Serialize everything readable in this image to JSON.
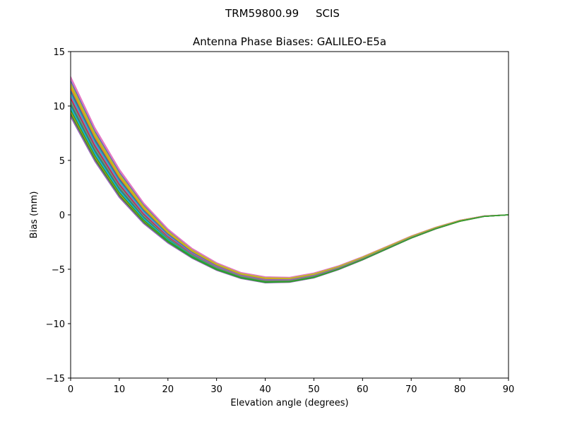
{
  "chart_data": {
    "type": "line",
    "suptitle": "TRM59800.99     SCIS",
    "title": "Antenna Phase Biases: GALILEO-E5a",
    "xlabel": "Elevation angle (degrees)",
    "ylabel": "Bias (mm)",
    "xlim": [
      0,
      90
    ],
    "ylim": [
      -15,
      15
    ],
    "xticks": [
      0,
      10,
      20,
      30,
      40,
      50,
      60,
      70,
      80,
      90
    ],
    "yticks": [
      -15,
      -10,
      -5,
      0,
      5,
      10,
      15
    ],
    "ytick_labels": [
      "−15",
      "−10",
      "−5",
      "0",
      "5",
      "10",
      "15"
    ],
    "grid": false,
    "legend": null,
    "x": [
      0,
      5,
      10,
      15,
      20,
      25,
      30,
      35,
      40,
      45,
      50,
      55,
      60,
      65,
      70,
      75,
      80,
      85,
      90
    ],
    "series_description": "Many overlapping azimuth curves (~36) forming a band; envelope given by upper and lower series",
    "series": [
      {
        "name": "upper envelope",
        "values": [
          12.7,
          8.0,
          4.2,
          1.1,
          -1.3,
          -3.1,
          -4.4,
          -5.3,
          -5.7,
          -5.75,
          -5.35,
          -4.7,
          -3.85,
          -2.9,
          -1.95,
          -1.15,
          -0.5,
          -0.1,
          0.0
        ]
      },
      {
        "name": "lower envelope",
        "values": [
          9.0,
          4.9,
          1.6,
          -0.8,
          -2.6,
          -4.0,
          -5.1,
          -5.85,
          -6.25,
          -6.2,
          -5.8,
          -5.05,
          -4.15,
          -3.15,
          -2.15,
          -1.3,
          -0.6,
          -0.15,
          0.0
        ]
      }
    ]
  },
  "palette": [
    "#1f77b4",
    "#ff7f0e",
    "#2ca02c",
    "#d62728",
    "#9467bd",
    "#8c564b",
    "#e377c2",
    "#7f7f7f",
    "#bcbd22",
    "#17becf"
  ]
}
